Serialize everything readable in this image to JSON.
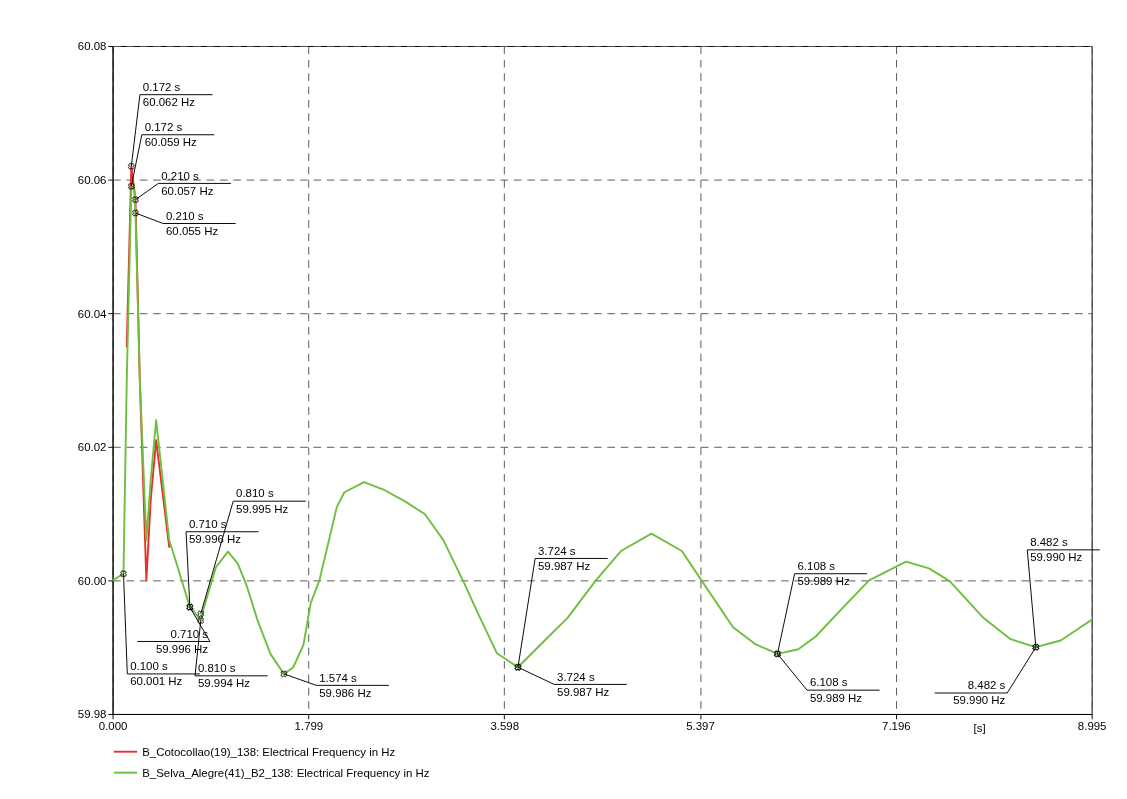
{
  "chart_data": {
    "type": "line",
    "xlabel": "[s]",
    "xlim": [
      0,
      8.995
    ],
    "xticks": [
      {
        "value": 0,
        "label": "0.000"
      },
      1.799,
      3.598,
      5.397,
      7.196,
      8.995
    ],
    "ylim": [
      59.98,
      60.08
    ],
    "yticks": [
      59.98,
      {
        "value": 60.0,
        "label": "60.00"
      },
      60.02,
      60.04,
      60.06,
      60.08
    ],
    "grid": true,
    "legend": "bottom left",
    "line_style": "solid",
    "marker": "none",
    "series": [
      {
        "name": "B_Cotocollao(19)_138: Electrical Frequency in Hz",
        "color": "#e8302a",
        "x": [
          0.13,
          0.172,
          0.21,
          0.25,
          0.31,
          0.35,
          0.4,
          0.46,
          0.52
        ],
        "values": [
          60.035,
          60.062,
          60.057,
          60.03,
          60.0,
          60.012,
          60.021,
          60.013,
          60.005
        ]
      },
      {
        "name": "B_Selva_Alegre(41)_B2_138: Electrical Frequency in Hz",
        "color": "#6fbf3f",
        "x": [
          0,
          0.1,
          0.13,
          0.172,
          0.2,
          0.21,
          0.25,
          0.31,
          0.35,
          0.4,
          0.46,
          0.52,
          0.56,
          0.71,
          0.74,
          0.81,
          0.84,
          0.95,
          1.06,
          1.15,
          1.23,
          1.33,
          1.45,
          1.574,
          1.66,
          1.754,
          1.82,
          1.9,
          2.06,
          2.13,
          2.31,
          2.5,
          2.69,
          2.87,
          3.04,
          3.23,
          3.35,
          3.53,
          3.724,
          3.97,
          4.18,
          4.44,
          4.67,
          4.95,
          5.23,
          5.41,
          5.7,
          5.9,
          6.108,
          6.3,
          6.46,
          6.69,
          6.95,
          7.29,
          7.5,
          7.69,
          8.0,
          8.25,
          8.482,
          8.71,
          8.995
        ],
        "values": [
          60.0,
          60.001,
          60.03,
          60.059,
          60.0585,
          60.055,
          60.03,
          60.006,
          60.015,
          60.024,
          60.015,
          60.006,
          60.004,
          59.996,
          59.9955,
          59.994,
          59.996,
          60.002,
          60.0043,
          60.0025,
          59.9993,
          59.9941,
          59.989,
          59.986,
          59.987,
          59.9904,
          59.9966,
          60.0,
          60.011,
          60.0132,
          60.0147,
          60.0135,
          60.0118,
          60.0099,
          60.006,
          59.9996,
          59.9953,
          59.9891,
          59.987,
          59.991,
          59.9944,
          60.0,
          60.0044,
          60.007,
          60.0044,
          60.0,
          59.993,
          59.9905,
          59.989,
          59.9897,
          59.9916,
          59.9956,
          60.0,
          60.0028,
          60.0018,
          59.9999,
          59.9944,
          59.9912,
          59.99,
          59.991,
          59.9941
        ]
      }
    ],
    "annotations": [
      {
        "text": "0.100 s\n60.001 Hz",
        "x": 0.1,
        "y": 60.001
      },
      {
        "text": "0.172 s\n60.062 Hz",
        "x": 0.172,
        "y": 60.062
      },
      {
        "text": "0.172 s\n60.059 Hz",
        "x": 0.172,
        "y": 60.059
      },
      {
        "text": "0.210 s\n60.057 Hz",
        "x": 0.21,
        "y": 60.057
      },
      {
        "text": "0.210 s\n60.055 Hz",
        "x": 0.21,
        "y": 60.055
      },
      {
        "text": "0.710 s\n59.996 Hz",
        "x": 0.71,
        "y": 59.996
      },
      {
        "text": "0.710 s\n59.996 Hz",
        "x": 0.71,
        "y": 59.996
      },
      {
        "text": "0.810 s\n59.995 Hz",
        "x": 0.81,
        "y": 59.995
      },
      {
        "text": "0.810 s\n59.994 Hz",
        "x": 0.81,
        "y": 59.994
      },
      {
        "text": "1.574 s\n59.986 Hz",
        "x": 1.574,
        "y": 59.986
      },
      {
        "text": "3.724 s\n59.987 Hz",
        "x": 3.724,
        "y": 59.987
      },
      {
        "text": "3.724 s\n59.987 Hz",
        "x": 3.724,
        "y": 59.987
      },
      {
        "text": "6.108 s\n59.989 Hz",
        "x": 6.108,
        "y": 59.989
      },
      {
        "text": "6.108 s\n59.989 Hz",
        "x": 6.108,
        "y": 59.989
      },
      {
        "text": "8.482 s\n59.990 Hz",
        "x": 8.482,
        "y": 59.99
      },
      {
        "text": "8.482 s\n59.990 Hz",
        "x": 8.482,
        "y": 59.99
      }
    ]
  }
}
